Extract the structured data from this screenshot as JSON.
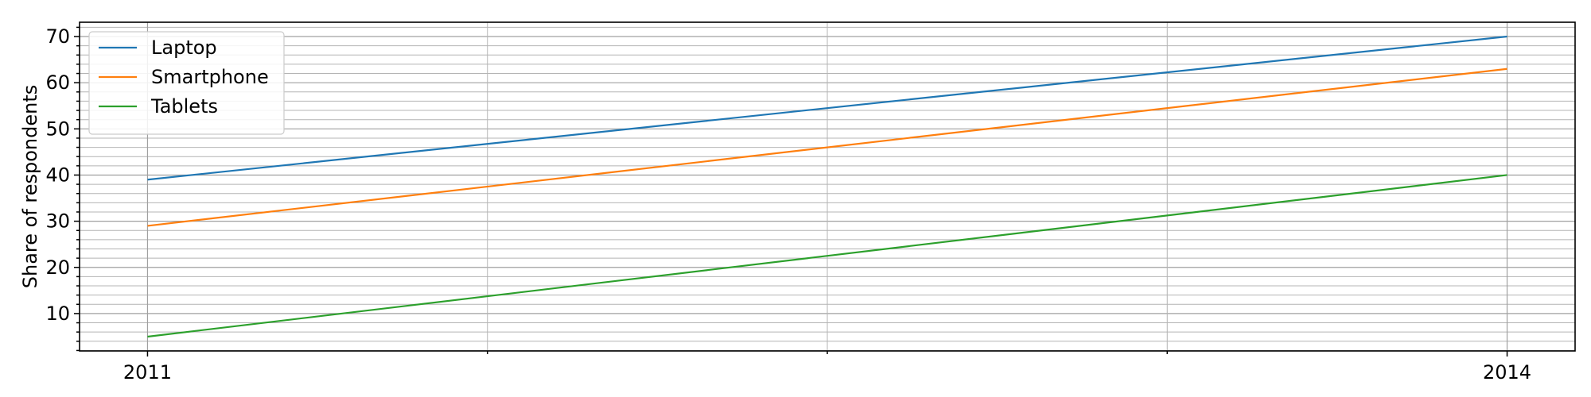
{
  "chart_data": {
    "type": "line",
    "x": [
      2011,
      2014
    ],
    "series": [
      {
        "name": "Laptop",
        "values": [
          39,
          70
        ],
        "color": "#1f77b4"
      },
      {
        "name": "Smartphone",
        "values": [
          29,
          63
        ],
        "color": "#ff7f0e"
      },
      {
        "name": "Tablets",
        "values": [
          5,
          40
        ],
        "color": "#2ca02c"
      }
    ],
    "xlabel": "",
    "ylabel": "Share of respondents",
    "xlim": [
      2010.85,
      2014.15
    ],
    "ylim": [
      1.9,
      73.1
    ],
    "xticks": [
      2011,
      2014
    ],
    "xticks_minor": [
      2011.75,
      2012.5,
      2013.25
    ],
    "yticks": [
      10,
      20,
      30,
      40,
      50,
      60,
      70
    ],
    "ytick_minor_step": 2,
    "grid": true,
    "legend_position": "upper-left"
  }
}
